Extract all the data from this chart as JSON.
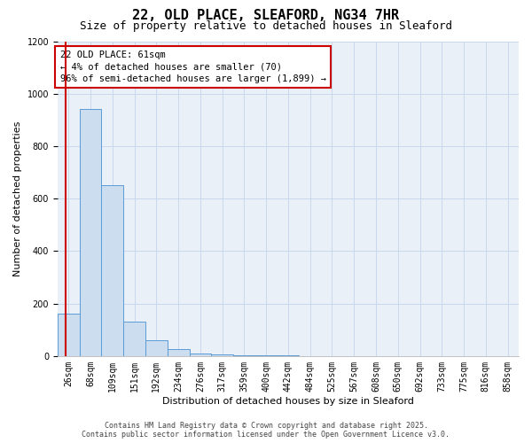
{
  "title_line1": "22, OLD PLACE, SLEAFORD, NG34 7HR",
  "title_line2": "Size of property relative to detached houses in Sleaford",
  "xlabel": "Distribution of detached houses by size in Sleaford",
  "ylabel": "Number of detached properties",
  "categories": [
    "26sqm",
    "68sqm",
    "109sqm",
    "151sqm",
    "192sqm",
    "234sqm",
    "276sqm",
    "317sqm",
    "359sqm",
    "400sqm",
    "442sqm",
    "484sqm",
    "525sqm",
    "567sqm",
    "608sqm",
    "650sqm",
    "692sqm",
    "733sqm",
    "775sqm",
    "816sqm",
    "858sqm"
  ],
  "values": [
    160,
    940,
    650,
    130,
    60,
    25,
    10,
    5,
    4,
    2,
    2,
    1,
    1,
    1,
    1,
    1,
    1,
    1,
    1,
    1,
    1
  ],
  "bar_color": "#ccddf0",
  "bar_edge_color": "#5b9bd5",
  "red_line_color": "#cc0000",
  "annotation_text": "22 OLD PLACE: 61sqm\n← 4% of detached houses are smaller (70)\n96% of semi-detached houses are larger (1,899) →",
  "annotation_box_color": "#ffffff",
  "annotation_box_edge": "#cc0000",
  "ylim": [
    0,
    1200
  ],
  "yticks": [
    0,
    200,
    400,
    600,
    800,
    1000,
    1200
  ],
  "grid_color": "#c8d8ec",
  "background_color": "#eaf0f8",
  "footer_line1": "Contains HM Land Registry data © Crown copyright and database right 2025.",
  "footer_line2": "Contains public sector information licensed under the Open Government Licence v3.0.",
  "title_fontsize": 11,
  "subtitle_fontsize": 9,
  "axis_label_fontsize": 8,
  "tick_fontsize": 7,
  "annotation_fontsize": 7.5,
  "footer_fontsize": 6
}
